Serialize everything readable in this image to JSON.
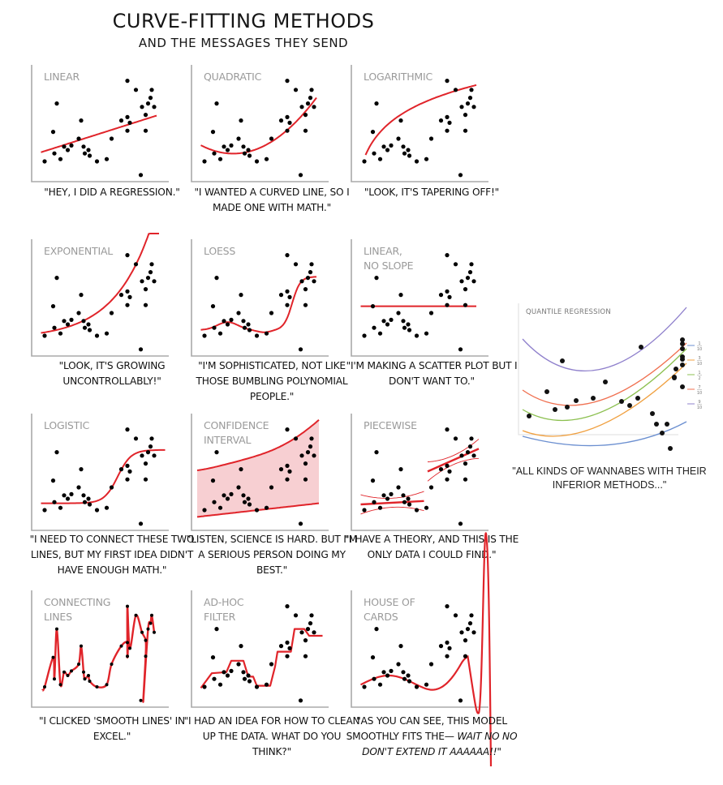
{
  "title": "CURVE-FITTING METHODS",
  "subtitle": "AND THE MESSAGES THEY SEND",
  "chart_data": {
    "type": "scatter",
    "title": "Curve-Fitting Methods and the Messages They Send",
    "xlim": [
      0,
      1
    ],
    "ylim": [
      0,
      1
    ],
    "points": {
      "x": [
        0.06,
        0.14,
        0.19,
        0.13,
        0.16,
        0.22,
        0.25,
        0.28,
        0.34,
        0.36,
        0.38,
        0.42,
        0.39,
        0.43,
        0.49,
        0.57,
        0.61,
        0.69,
        0.74,
        0.76,
        0.74,
        0.74,
        0.81,
        0.86,
        0.89,
        0.89,
        0.91,
        0.93,
        0.94,
        0.96,
        0.85
      ],
      "y": [
        0.15,
        0.22,
        0.17,
        0.41,
        0.66,
        0.28,
        0.25,
        0.29,
        0.35,
        0.51,
        0.28,
        0.25,
        0.22,
        0.2,
        0.15,
        0.17,
        0.35,
        0.51,
        0.54,
        0.49,
        0.42,
        0.86,
        0.78,
        0.63,
        0.56,
        0.42,
        0.66,
        0.71,
        0.78,
        0.63,
        0.03
      ]
    },
    "panels": [
      {
        "id": "linear",
        "label": "LINEAR",
        "caption": "\"HEY, I DID A REGRESSION.\"",
        "fit": "linear",
        "params": {
          "intercept": 0.22,
          "slope": 0.34
        }
      },
      {
        "id": "quadratic",
        "label": "QUADRATIC",
        "caption": "\"I WANTED A CURVED LINE, SO I MADE ONE WITH MATH.\"",
        "fit": "quadratic",
        "params": {
          "a": 1.05,
          "b": -0.62,
          "c": 0.31
        }
      },
      {
        "id": "logarithmic",
        "label": "LOGARITHMIC",
        "caption": "\"LOOK, IT'S TAPERING OFF!\"",
        "fit": "logarithmic"
      },
      {
        "id": "exponential",
        "label": "EXPONENTIAL",
        "caption": "\"LOOK, IT'S GROWING UNCONTROLLABLY!\"",
        "fit": "exponential"
      },
      {
        "id": "loess",
        "label": "LOESS",
        "caption": "\"I'M SOPHISTICATED, NOT LIKE THOSE BUMBLING POLYNOMIAL PEOPLE.\"",
        "fit": "loess"
      },
      {
        "id": "linear-no-slope",
        "label": "LINEAR,\nNO SLOPE",
        "caption": "\"I'M MAKING A SCATTER PLOT BUT I DON'T WANT TO.\"",
        "fit": "constant",
        "params": {
          "value": 0.41
        }
      },
      {
        "id": "logistic",
        "label": "LOGISTIC",
        "caption": "\"I NEED TO CONNECT THESE TWO LINES, BUT MY FIRST IDEA DIDN'T HAVE ENOUGH MATH.\"",
        "fit": "logistic"
      },
      {
        "id": "confidence-interval",
        "label": "CONFIDENCE\nINTERVAL",
        "caption": "\"LISTEN, SCIENCE IS HARD. BUT I'M A SERIOUS PERSON DOING MY BEST.\"",
        "fit": "band"
      },
      {
        "id": "piecewise",
        "label": "PIECEWISE",
        "caption": "\"I HAVE A THEORY, AND THIS IS THE ONLY DATA I COULD FIND.\"",
        "fit": "piecewise"
      },
      {
        "id": "connecting-lines",
        "label": "CONNECTING\nLINES",
        "caption": "\"I CLICKED 'SMOOTH LINES' IN EXCEL.\"",
        "fit": "connect"
      },
      {
        "id": "ad-hoc-filter",
        "label": "AD-HOC\nFILTER",
        "caption": "\"I HAD AN IDEA FOR HOW TO CLEAN UP THE DATA. WHAT DO YOU THINK?\"",
        "fit": "adhoc"
      },
      {
        "id": "house-of-cards",
        "label": "HOUSE OF\nCARDS",
        "caption_parts": [
          "\"AS YOU CAN SEE, THIS MODEL SMOOTHLY FITS THE— ",
          "WAIT NO NO DON'T EXTEND IT AAAAAA!!\""
        ],
        "fit": "house"
      }
    ],
    "quantile_regression": {
      "label": "QUANTILE REGRESSION",
      "caption": "\"ALL KINDS OF WANNABES WITH THEIR INFERIOR METHODS...\"",
      "legend": [
        {
          "num": "1",
          "den": "10",
          "color": "#6b8fd0"
        },
        {
          "num": "3",
          "den": "10",
          "color": "#f0a040"
        },
        {
          "num": "1",
          "den": "2",
          "color": "#8cc050"
        },
        {
          "num": "7",
          "den": "10",
          "color": "#f07050"
        },
        {
          "num": "9",
          "den": "10",
          "color": "#8f80cc"
        }
      ]
    }
  },
  "colors": {
    "fit": "#e0242a",
    "band": "#f7cfd2",
    "axis": "#aaaaaa",
    "point": "#000000"
  }
}
